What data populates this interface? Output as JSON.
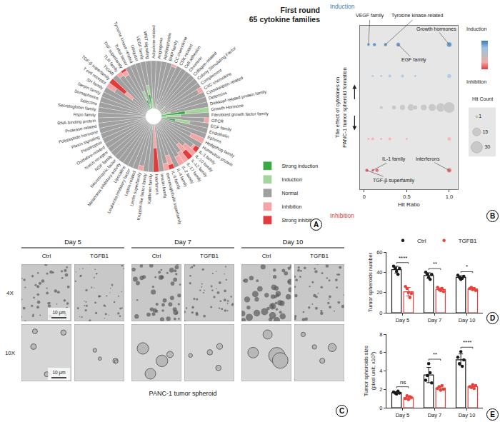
{
  "chart_data": [
    {
      "panel": "A",
      "type": "polar_bar",
      "title": [
        "First round",
        "65 cytokine families"
      ],
      "stacked": true,
      "legend": "bottom right",
      "ylim": [
        0,
        100
      ],
      "tick_labels": false,
      "categories": [
        "Adipokine-related",
        "Angiogenin",
        "Apolipoprotein",
        "BMP family",
        "CC chemokine",
        "CDK-related",
        "Cell adhesion",
        "Chemerin",
        "Collagen-related",
        "Colony Stimulating Factor",
        "Complement",
        "CXC chemokine",
        "Cytoskeleton-related",
        "Defensins",
        "Dickkopf-related protein family",
        "Growth Hormone",
        "Fibroblast growth factor family",
        "GPCR",
        "EGF family",
        "Endothelin",
        "Ephrins",
        "Hedgehog family",
        "Homeobox protein",
        "IL-1 family",
        "IL-10 family",
        "IL-12 family",
        "IL-17 family",
        "IL-2 family",
        "IL-4 family",
        "IL-6 family",
        "Immunoglobulin superfamily",
        "Insulin family",
        "Interferons",
        "Kallikrein family",
        "Kruppel-like factor family",
        "Lectin superfamily",
        "Leptin-related",
        "Leukemia inhibitory factor",
        "Lipocalins",
        "Melanoma inhibitory activity",
        "Neurotrophic factor",
        "NGF family",
        "Notch receptor",
        "Oxidative-related",
        "Pleiotrophin",
        "Plexin signaling",
        "Polypeptide hormone",
        "Protease-related",
        "RNA-binding protein",
        "Rspo family",
        "Secretoglobin family",
        "Selectins",
        "Semaphorins",
        "Serpin family",
        "SH family",
        "T cell receptor",
        "TGF-β superfamily",
        "TIGAR",
        "TLR family",
        "TNF superfamily",
        "Trefoil factor",
        "Tyrosine kinase-related",
        "Ubiquitin",
        "VEGF family",
        "WNT signaling"
      ],
      "series": [
        {
          "name": "Strong induction",
          "color": "#3aa845",
          "values": [
            0,
            0,
            0,
            0,
            0,
            0,
            0,
            0,
            0,
            0,
            0,
            0,
            0,
            0,
            0,
            50,
            10,
            0,
            30,
            0,
            0,
            0,
            0,
            0,
            0,
            0,
            0,
            0,
            0,
            0,
            0,
            0,
            0,
            0,
            0,
            0,
            0,
            0,
            0,
            0,
            0,
            0,
            0,
            0,
            0,
            0,
            0,
            0,
            0,
            0,
            0,
            0,
            0,
            0,
            0,
            0,
            0,
            0,
            0,
            0,
            0,
            20,
            0,
            30,
            0
          ]
        },
        {
          "name": "Induction",
          "color": "#a3d69c",
          "values": [
            0,
            0,
            0,
            10,
            0,
            0,
            0,
            0,
            0,
            15,
            0,
            0,
            0,
            0,
            20,
            50,
            30,
            10,
            30,
            0,
            0,
            0,
            0,
            0,
            0,
            0,
            0,
            0,
            0,
            0,
            0,
            0,
            0,
            0,
            0,
            0,
            0,
            0,
            0,
            0,
            0,
            0,
            0,
            0,
            0,
            0,
            0,
            0,
            0,
            0,
            0,
            0,
            0,
            0,
            0,
            0,
            0,
            0,
            0,
            0,
            0,
            20,
            10,
            20,
            20
          ]
        },
        {
          "name": "Normal",
          "color": "#a0a0a0",
          "values": [
            100,
            100,
            100,
            90,
            95,
            100,
            100,
            100,
            100,
            85,
            100,
            90,
            100,
            100,
            80,
            0,
            60,
            80,
            40,
            100,
            100,
            70,
            100,
            85,
            70,
            60,
            75,
            80,
            100,
            70,
            85,
            100,
            0,
            100,
            100,
            90,
            100,
            100,
            100,
            100,
            100,
            100,
            100,
            100,
            100,
            100,
            100,
            100,
            100,
            100,
            100,
            100,
            100,
            100,
            100,
            80,
            40,
            100,
            90,
            85,
            100,
            60,
            90,
            50,
            80
          ]
        },
        {
          "name": "Inhibition",
          "color": "#f4a6a6",
          "values": [
            0,
            0,
            0,
            0,
            5,
            0,
            0,
            0,
            0,
            0,
            0,
            10,
            0,
            0,
            0,
            0,
            0,
            10,
            0,
            0,
            0,
            30,
            0,
            5,
            30,
            20,
            25,
            20,
            0,
            20,
            15,
            0,
            50,
            0,
            0,
            10,
            0,
            0,
            0,
            0,
            0,
            0,
            0,
            0,
            0,
            0,
            0,
            0,
            0,
            0,
            0,
            0,
            0,
            0,
            0,
            20,
            20,
            0,
            10,
            10,
            0,
            0,
            0,
            0,
            0
          ]
        },
        {
          "name": "Strong inhibition",
          "color": "#e03c3c",
          "values": [
            0,
            0,
            0,
            0,
            0,
            0,
            0,
            0,
            0,
            0,
            0,
            0,
            0,
            0,
            0,
            0,
            0,
            0,
            0,
            0,
            0,
            0,
            0,
            10,
            0,
            20,
            0,
            0,
            0,
            10,
            0,
            0,
            50,
            0,
            0,
            0,
            0,
            0,
            0,
            0,
            0,
            0,
            0,
            0,
            0,
            0,
            0,
            0,
            0,
            0,
            0,
            0,
            0,
            0,
            0,
            0,
            40,
            0,
            0,
            5,
            0,
            0,
            0,
            0,
            0
          ]
        }
      ]
    },
    {
      "panel": "B",
      "type": "scatter",
      "x_label": "Hit Ratio",
      "y_label": "The effect of cytokines on PANC-1 tumor spheroid formation",
      "top_label": "Induction",
      "bottom_label": "Inhibition",
      "x": [
        0.05,
        0.12,
        0.25,
        0.4,
        1.0,
        0.1,
        0.2,
        0.3,
        0.45,
        0.6,
        1.0,
        0.2,
        0.35,
        0.45,
        0.55,
        0.6,
        0.7,
        0.8,
        0.9,
        1.0,
        0.05,
        0.1,
        0.2,
        0.3,
        0.5,
        1.0,
        0.03,
        0.1,
        0.15,
        1.0
      ],
      "values": [
        2,
        2,
        2,
        2,
        2,
        1,
        1,
        1,
        1,
        1,
        1,
        0,
        0,
        0,
        0,
        0,
        0,
        0,
        0,
        0,
        -1,
        -1,
        -1,
        -1,
        -1,
        -1,
        -2,
        -2,
        -2,
        -2
      ],
      "sizes": [
        2,
        3,
        3,
        4,
        6,
        2,
        2,
        3,
        3,
        2,
        5,
        3,
        5,
        8,
        12,
        6,
        10,
        14,
        20,
        30,
        2,
        3,
        2,
        3,
        2,
        4,
        3,
        2,
        3,
        5
      ],
      "xlim": [
        -0.05,
        1.1
      ],
      "xticks": [
        0,
        0.5,
        {
          "value": 1,
          "label": "1.0"
        }
      ],
      "ylim": [
        -2.6,
        2.6
      ],
      "tick_labels": "x",
      "color_scale": [
        "#d9413e",
        "#f2a9a9",
        "#bdbdbd",
        "#9ec2e3",
        "#3a78b8"
      ],
      "colorbar_labels": {
        "top": "Induction",
        "bottom": "Inhibition"
      },
      "size_key": {
        "title": "Hit Count",
        "values": [
          1,
          15,
          30
        ]
      },
      "annotations": [
        {
          "text": "VEGF family",
          "x": 0.05,
          "y": 2
        },
        {
          "text": "Tyrosine kinase-related",
          "x": 0.25,
          "y": 2
        },
        {
          "text": "EGF family",
          "x": 0.4,
          "y": 2
        },
        {
          "text": "Growth hormones",
          "x": 1.0,
          "y": 2
        },
        {
          "text": "IL-1 family",
          "x": 0.1,
          "y": -2
        },
        {
          "text": "TGF-β superfamily",
          "x": 0.03,
          "y": -2
        },
        {
          "text": "Interferons",
          "x": 1.0,
          "y": -2
        }
      ]
    },
    {
      "panel": "D",
      "type": "bar",
      "categories": [
        "Day 5",
        "Day 7",
        "Day 10"
      ],
      "y_label": "Tumor spheroids number",
      "ylim": [
        0,
        60
      ],
      "yticks": [
        0,
        20,
        40,
        60
      ],
      "legend": "top",
      "series": [
        {
          "name": "Ctrl",
          "color": "#1a1a1a",
          "values": [
            42.6,
            36.8,
            35
          ],
          "errors": [
            3.3,
            2.7,
            1.6
          ],
          "points": [
            [
              46,
              44,
              41,
              38,
              44
            ],
            [
              40,
              38,
              35,
              33,
              38
            ],
            [
              37,
              35,
              33,
              34,
              36
            ]
          ]
        },
        {
          "name": "TGFB1",
          "color": "#e8413c",
          "values": [
            20.8,
            23,
            23.6
          ],
          "errors": [
            4.2,
            1.6,
            1.1
          ],
          "points": [
            [
              26,
              24,
              20,
              15,
              19
            ],
            [
              25,
              23,
              22,
              24,
              21
            ],
            [
              24,
              25,
              23,
              24,
              22
            ]
          ]
        }
      ],
      "comparisons": [
        {
          "category": "Day 5",
          "label": "****"
        },
        {
          "category": "Day 7",
          "label": "**"
        },
        {
          "category": "Day 10",
          "label": "*"
        }
      ]
    },
    {
      "panel": "E",
      "type": "bar",
      "categories": [
        "Day 5",
        "Day 7",
        "Day 10"
      ],
      "y_label": "Tumor spheroids size (pixel unit, x10³)",
      "ylim": [
        0,
        8
      ],
      "yticks": [
        0,
        2,
        4,
        6,
        8
      ],
      "series": [
        {
          "name": "Ctrl",
          "color": "#1a1a1a",
          "values": [
            1.64,
            3.56,
            5.22
          ],
          "errors": [
            0.11,
            0.83,
            0.63
          ],
          "points": [
            [
              1.7,
              1.6,
              1.5,
              1.8,
              1.6
            ],
            [
              3.0,
              3.5,
              4.8,
              3.8,
              2.7
            ],
            [
              5.5,
              4.8,
              6.1,
              4.5,
              5.2
            ]
          ]
        },
        {
          "name": "TGFB1",
          "color": "#e8413c",
          "values": [
            1.1,
            2.14,
            2.3
          ],
          "errors": [
            0.16,
            0.2,
            0.16
          ],
          "points": [
            [
              1.0,
              1.3,
              0.9,
              1.2,
              1.1
            ],
            [
              2.1,
              2.3,
              1.9,
              2.4,
              2.0
            ],
            [
              2.3,
              2.2,
              2.5,
              2.1,
              2.4
            ]
          ]
        }
      ],
      "comparisons": [
        {
          "category": "Day 5",
          "label": "ns"
        },
        {
          "category": "Day 7",
          "label": "**"
        },
        {
          "category": "Day 10",
          "label": "****"
        }
      ]
    }
  ],
  "image_panel": {
    "panel": "C",
    "columns": [
      {
        "label": "Day 5",
        "groups": [
          "Ctrl",
          "TGFB1"
        ]
      },
      {
        "label": "Day 7",
        "groups": [
          "Ctrl",
          "TGFB1"
        ]
      },
      {
        "label": "Day 10",
        "groups": [
          "Ctrl",
          "TGFB1"
        ]
      }
    ],
    "rows": [
      "4X",
      "10X"
    ],
    "scale_bar": "10 μm",
    "caption": "PANC-1 tumor spheroid"
  }
}
